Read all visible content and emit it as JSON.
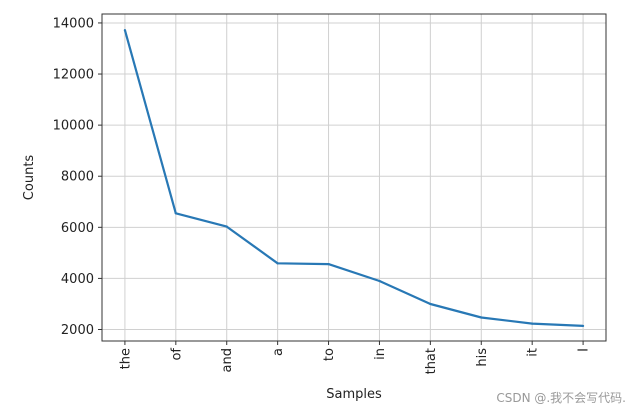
{
  "chart_data": {
    "type": "line",
    "categories": [
      "the",
      "of",
      "and",
      "a",
      "to",
      "in",
      "that",
      "his",
      "it",
      "I"
    ],
    "series": [
      {
        "values": [
          13720,
          6550,
          6030,
          4590,
          4560,
          3900,
          3000,
          2470,
          2230,
          2140
        ]
      }
    ],
    "xlabel": "Samples",
    "ylabel": "Counts",
    "yticks": [
      2000,
      4000,
      6000,
      8000,
      10000,
      12000,
      14000
    ],
    "ylim": [
      1550,
      14350
    ],
    "grid": true,
    "colors": {
      "line": "#2878b5",
      "grid": "#d0d0d0",
      "axes": "#333333"
    }
  },
  "watermark": "CSDN @.我不会写代码."
}
